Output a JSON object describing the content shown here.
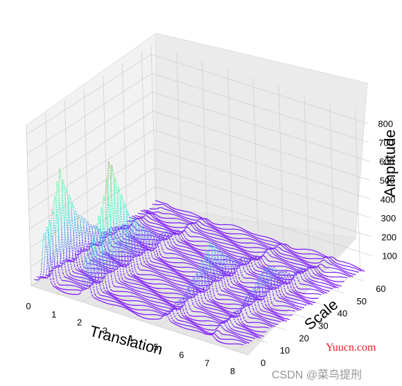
{
  "chart_data": {
    "type": "surface3d",
    "title": "",
    "xlabel": "Translation",
    "ylabel": "Scale",
    "zlabel": "Amplitude",
    "x_ticks": [
      "0",
      "1",
      "2",
      "3",
      "4",
      "5",
      "6",
      "7",
      "8"
    ],
    "y_ticks": [
      "0",
      "10",
      "20",
      "30",
      "40",
      "50",
      "60"
    ],
    "z_ticks": [
      "100",
      "200",
      "300",
      "400",
      "500",
      "600",
      "700",
      "800"
    ],
    "xlim": [
      0,
      8.5
    ],
    "ylim": [
      0,
      65
    ],
    "zlim": [
      0,
      850
    ],
    "colormap": "rainbow",
    "grid": true,
    "peaks": [
      {
        "translation": 0.5,
        "scale": 10,
        "amplitude": 550
      },
      {
        "translation": 2.1,
        "scale": 15,
        "amplitude": 650
      },
      {
        "translation": 5.2,
        "scale": 25,
        "amplitude": 280
      },
      {
        "translation": 7.0,
        "scale": 30,
        "amplitude": 200
      }
    ]
  },
  "watermarks": {
    "site": "Yuucn.com",
    "csdn": "CSDN @菜鸟提刑"
  }
}
